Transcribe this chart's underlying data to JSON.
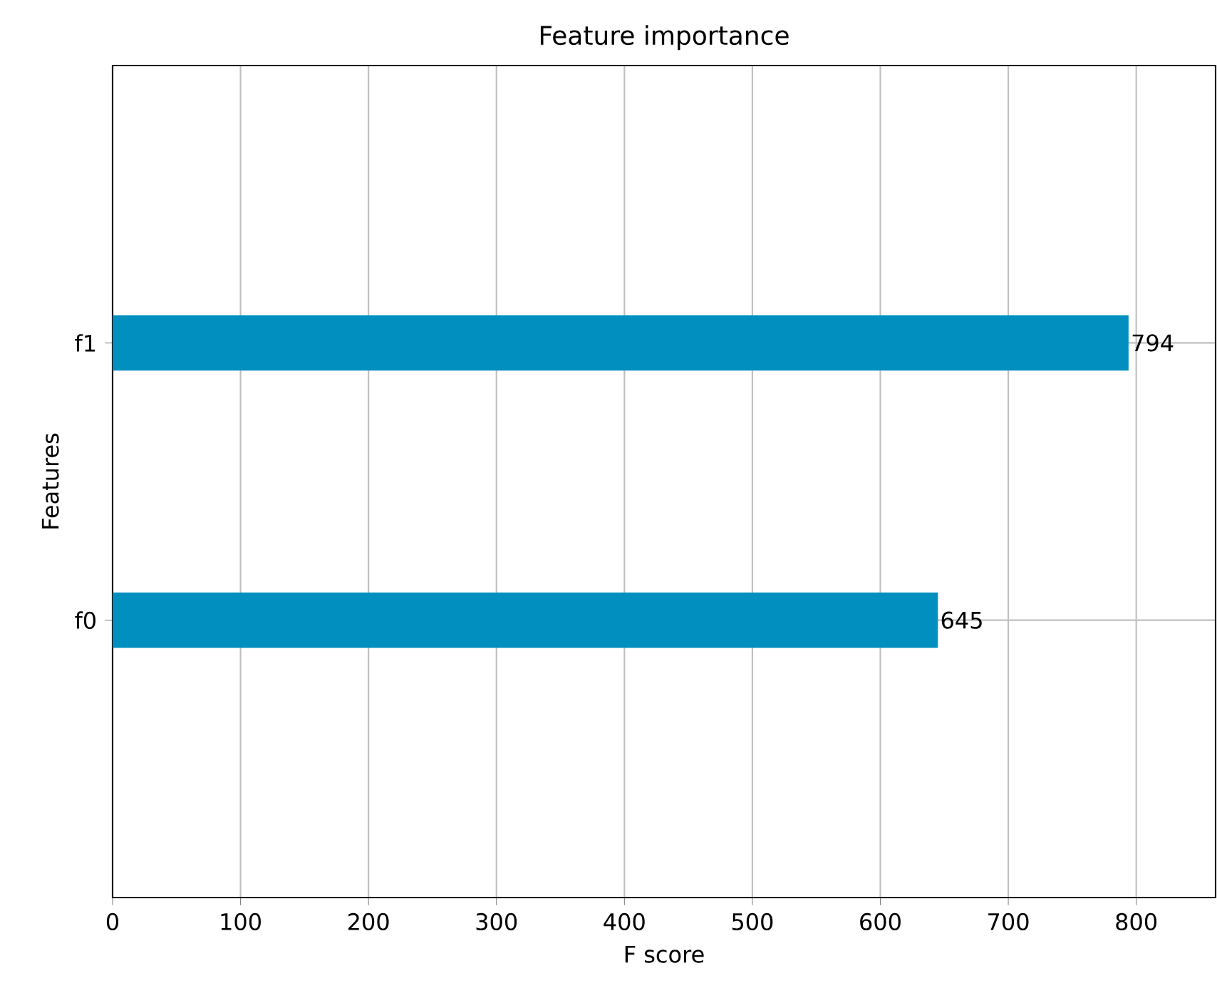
{
  "chart_data": {
    "type": "bar",
    "orientation": "horizontal",
    "title": "Feature importance",
    "xlabel": "F score",
    "ylabel": "Features",
    "categories": [
      "f1",
      "f0"
    ],
    "values": [
      794,
      645
    ],
    "color": "#008fbf",
    "data_labels": true,
    "xlim": [
      0,
      862
    ],
    "xticks": [
      0,
      100,
      200,
      300,
      400,
      500,
      600,
      700,
      800
    ],
    "grid": true
  }
}
